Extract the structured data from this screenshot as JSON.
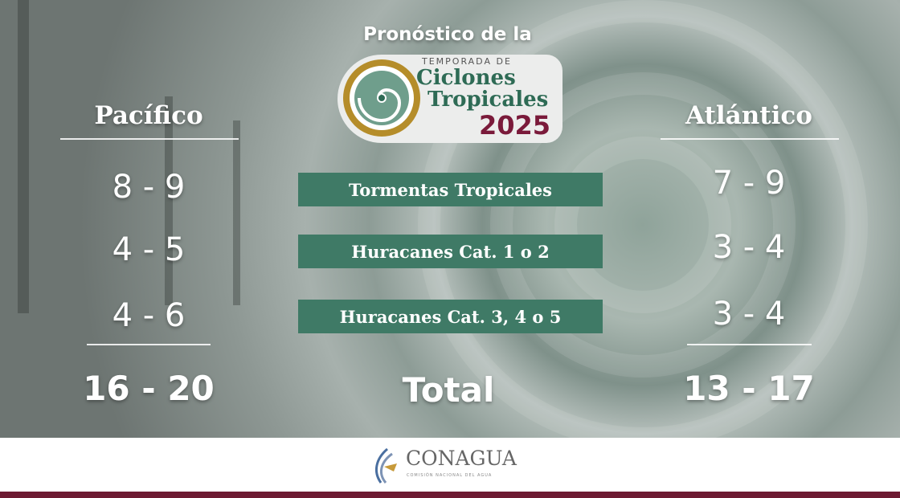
{
  "title": "Pronóstico de la",
  "logo": {
    "line1": "TEMPORADA DE",
    "line2": "Ciclones",
    "line3": "Tropicales",
    "year": "2025"
  },
  "pacific": {
    "heading": "Pacífico",
    "values": [
      "8 - 9",
      "4 - 5",
      "4 - 6"
    ],
    "total": "16 - 20"
  },
  "atlantic": {
    "heading": "Atlántico",
    "values": [
      "7 - 9",
      "3 - 4",
      "3 - 4"
    ],
    "total": "13 - 17"
  },
  "categories": [
    "Tormentas Tropicales",
    "Huracanes Cat. 1 o 2",
    "Huracanes Cat. 3, 4 o 5"
  ],
  "total_label": "Total",
  "footer": {
    "name": "CONAGUA",
    "subtitle": "COMISIÓN NACIONAL DEL AGUA"
  },
  "colors": {
    "label_bg": "#3f7a66",
    "brand_maroon": "#6d1a32",
    "logo_green": "#2e6b55",
    "logo_gold": "#b58d2a"
  }
}
